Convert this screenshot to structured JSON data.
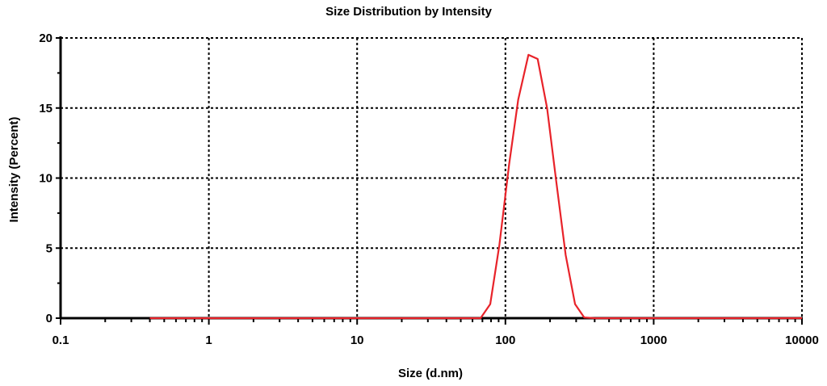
{
  "chart_data": {
    "type": "line",
    "title": "Size Distribution by Intensity",
    "xlabel": "Size (d.nm)",
    "ylabel": "Intensity (Percent)",
    "x_scale": "log",
    "xlim": [
      0.1,
      10000
    ],
    "ylim": [
      0,
      20
    ],
    "x_ticks": [
      "0.1",
      "1",
      "10",
      "100",
      "1000",
      "10000"
    ],
    "y_ticks": [
      "0",
      "5",
      "10",
      "15",
      "20"
    ],
    "grid": true,
    "legend": "none",
    "series": [
      {
        "color": "#e8232a",
        "points": [
          [
            0.4,
            0
          ],
          [
            50,
            0
          ],
          [
            68,
            0
          ],
          [
            79,
            1.0
          ],
          [
            91,
            5.2
          ],
          [
            106,
            11.0
          ],
          [
            122,
            15.6
          ],
          [
            143,
            18.8
          ],
          [
            165,
            18.5
          ],
          [
            191,
            15.0
          ],
          [
            220,
            9.8
          ],
          [
            255,
            4.5
          ],
          [
            295,
            1.0
          ],
          [
            340,
            0.05
          ],
          [
            400,
            0
          ],
          [
            10000,
            0
          ]
        ]
      }
    ]
  }
}
